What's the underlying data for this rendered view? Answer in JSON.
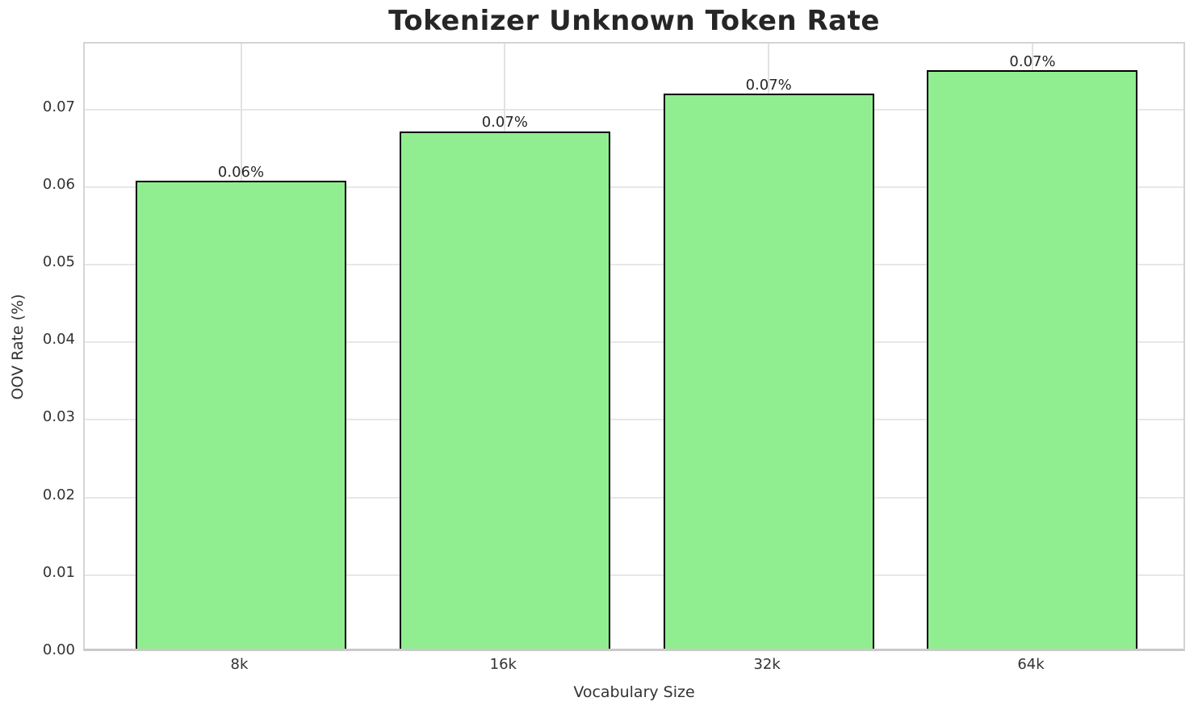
{
  "chart_data": {
    "type": "bar",
    "title": "Tokenizer Unknown Token Rate",
    "xlabel": "Vocabulary Size",
    "ylabel": "OOV Rate (%)",
    "categories": [
      "8k",
      "16k",
      "32k",
      "64k"
    ],
    "values": [
      0.0603,
      0.0667,
      0.0715,
      0.0746
    ],
    "bar_labels": [
      "0.06%",
      "0.07%",
      "0.07%",
      "0.07%"
    ],
    "yticks": [
      0.0,
      0.01,
      0.02,
      0.03,
      0.04,
      0.05,
      0.06,
      0.07
    ],
    "ytick_labels": [
      "0.00",
      "0.01",
      "0.02",
      "0.03",
      "0.04",
      "0.05",
      "0.06",
      "0.07"
    ],
    "ylim": [
      0,
      0.0785
    ],
    "grid": true,
    "legend_position": "none",
    "bar_color": "#90EE90",
    "bar_edge_color": "#000000",
    "text_color": "#262626",
    "grid_color": "#e7e7e7"
  }
}
